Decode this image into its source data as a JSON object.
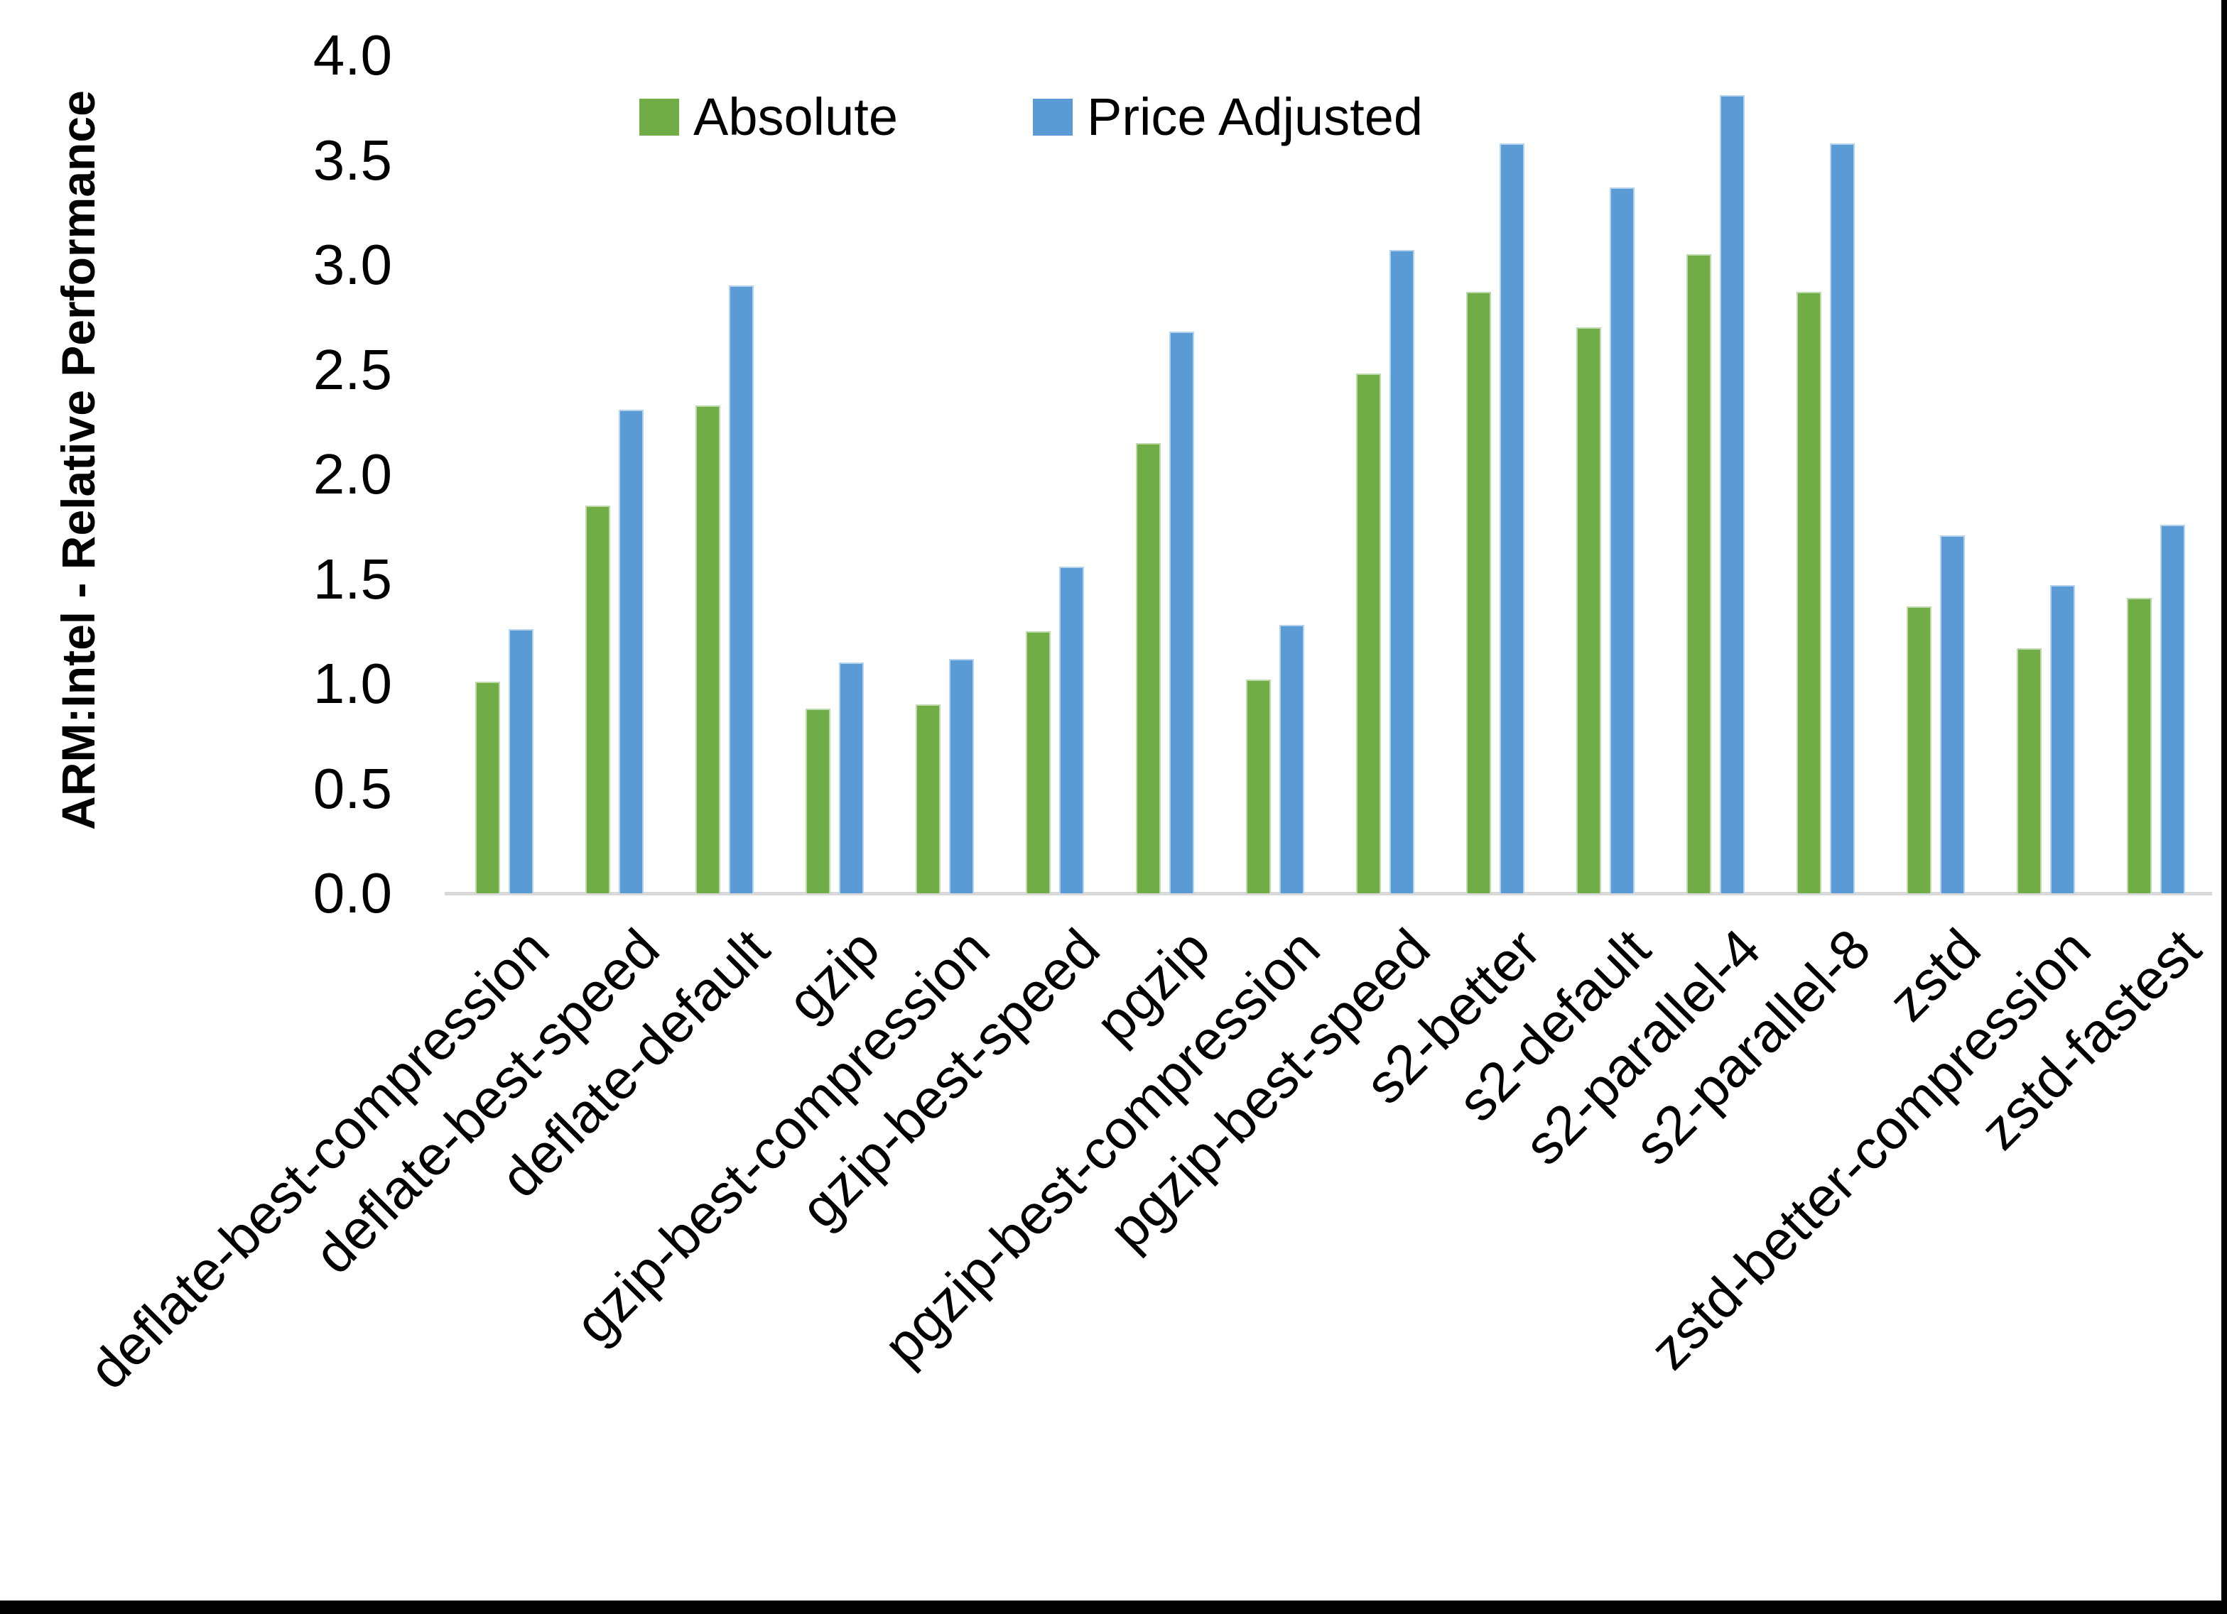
{
  "figure": {
    "y_axis_title": "ARM:Intel - Relative Performance"
  },
  "chart_data": {
    "type": "bar",
    "title": "",
    "xlabel": "",
    "ylabel": "ARM:Intel - Relative Performance",
    "ylim": [
      0.0,
      4.0
    ],
    "ytick_step": 0.5,
    "yticks": [
      "0.0",
      "0.5",
      "1.0",
      "1.5",
      "2.0",
      "2.5",
      "3.0",
      "3.5",
      "4.0"
    ],
    "grid": false,
    "legend_position": "top-center",
    "categories": [
      "deflate-best-compression",
      "deflate-best-speed",
      "deflate-default",
      "gzip",
      "gzip-best-compression",
      "gzip-best-speed",
      "pgzip",
      "pgzip-best-compression",
      "pgzip-best-speed",
      "s2-better",
      "s2-default",
      "s2-parallel-4",
      "s2-parallel-8",
      "zstd",
      "zstd-better-compression",
      "zstd-fastest"
    ],
    "series": [
      {
        "name": "Absolute",
        "color": "#70AD47",
        "values": [
          1.01,
          1.85,
          2.33,
          0.88,
          0.9,
          1.25,
          2.15,
          1.02,
          2.48,
          2.87,
          2.7,
          3.05,
          2.87,
          1.37,
          1.17,
          1.41
        ]
      },
      {
        "name": "Price Adjusted",
        "color": "#5B9BD5",
        "values": [
          1.26,
          2.31,
          2.9,
          1.1,
          1.12,
          1.56,
          2.68,
          1.28,
          3.07,
          3.58,
          3.37,
          3.81,
          3.58,
          1.71,
          1.47,
          1.76
        ]
      }
    ]
  }
}
